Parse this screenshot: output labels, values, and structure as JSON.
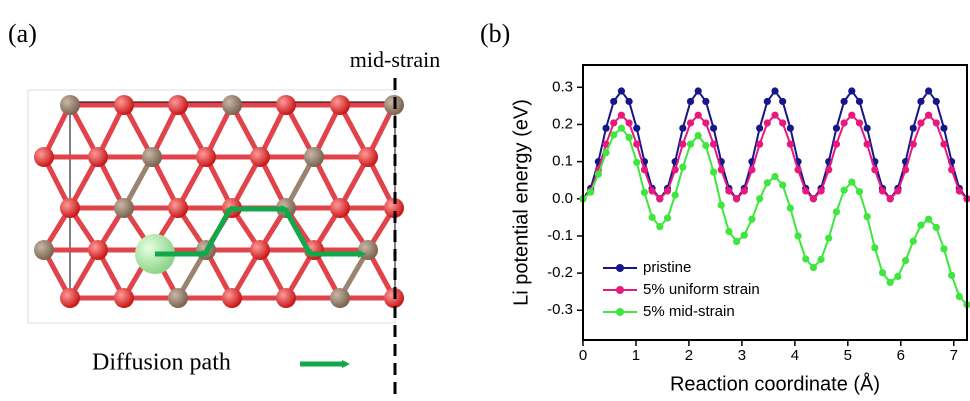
{
  "panel_a": {
    "label": "(a)",
    "divider_label": "mid-strain",
    "legend": "Diffusion path"
  },
  "chart_data": {
    "type": "line",
    "panel_label": "(b)",
    "x_label": "Reaction coordinate (Å)",
    "y_label": "Li potential energy (eV)",
    "xlim": [
      0,
      7.25
    ],
    "ylim": [
      -0.38,
      0.36
    ],
    "xticks": [
      0,
      1,
      2,
      3,
      4,
      5,
      6,
      7
    ],
    "yticks": [
      -0.3,
      -0.2,
      -0.1,
      {
        "value": 0,
        "label": "0.0"
      },
      0.1,
      0.2,
      0.3
    ],
    "legend": "lower left",
    "x": [
      0,
      0.145,
      0.29,
      0.435,
      0.58,
      0.725,
      0.87,
      1.015,
      1.16,
      1.305,
      1.45,
      1.595,
      1.74,
      1.885,
      2.03,
      2.175,
      2.32,
      2.465,
      2.61,
      2.755,
      2.9,
      3.045,
      3.19,
      3.335,
      3.48,
      3.625,
      3.77,
      3.915,
      4.06,
      4.205,
      4.35,
      4.495,
      4.64,
      4.785,
      4.93,
      5.075,
      5.22,
      5.365,
      5.51,
      5.655,
      5.8,
      5.945,
      6.09,
      6.235,
      6.38,
      6.525,
      6.67,
      6.815,
      6.96,
      7.105,
      7.25
    ],
    "series": [
      {
        "name": "pristine",
        "color": "#16168a",
        "values": [
          0,
          0.028,
          0.1,
          0.19,
          0.262,
          0.29,
          0.262,
          0.19,
          0.1,
          0.028,
          0,
          0.028,
          0.1,
          0.19,
          0.262,
          0.29,
          0.262,
          0.19,
          0.1,
          0.028,
          0,
          0.028,
          0.1,
          0.19,
          0.262,
          0.29,
          0.262,
          0.19,
          0.1,
          0.028,
          0,
          0.028,
          0.1,
          0.19,
          0.262,
          0.29,
          0.262,
          0.19,
          0.1,
          0.028,
          0,
          0.028,
          0.1,
          0.19,
          0.262,
          0.29,
          0.262,
          0.19,
          0.1,
          0.028,
          0
        ]
      },
      {
        "name": "5% uniform strain",
        "color": "#e8187c",
        "values": [
          0,
          0.021,
          0.078,
          0.147,
          0.204,
          0.225,
          0.204,
          0.147,
          0.078,
          0.021,
          0,
          0.021,
          0.078,
          0.147,
          0.204,
          0.225,
          0.204,
          0.147,
          0.078,
          0.021,
          0,
          0.021,
          0.078,
          0.147,
          0.204,
          0.225,
          0.204,
          0.147,
          0.078,
          0.021,
          0,
          0.021,
          0.078,
          0.147,
          0.204,
          0.225,
          0.204,
          0.147,
          0.078,
          0.021,
          0,
          0.021,
          0.078,
          0.147,
          0.204,
          0.225,
          0.204,
          0.147,
          0.078,
          0.021,
          0
        ]
      },
      {
        "name": "5% mid-strain",
        "color": "#3ee63e",
        "values": [
          0,
          0.018,
          0.066,
          0.124,
          0.172,
          0.19,
          0.165,
          0.098,
          0.017,
          -0.05,
          -0.075,
          -0.052,
          0.01,
          0.085,
          0.147,
          0.17,
          0.143,
          0.072,
          -0.017,
          -0.088,
          -0.115,
          -0.098,
          -0.055,
          0.0,
          0.043,
          0.06,
          0.037,
          -0.025,
          -0.1,
          -0.162,
          -0.185,
          -0.163,
          -0.106,
          -0.035,
          0.023,
          0.045,
          0.019,
          -0.048,
          -0.132,
          -0.199,
          -0.225,
          -0.209,
          -0.166,
          -0.114,
          -0.071,
          -0.055,
          -0.077,
          -0.135,
          -0.206,
          -0.263,
          -0.285
        ]
      }
    ]
  }
}
